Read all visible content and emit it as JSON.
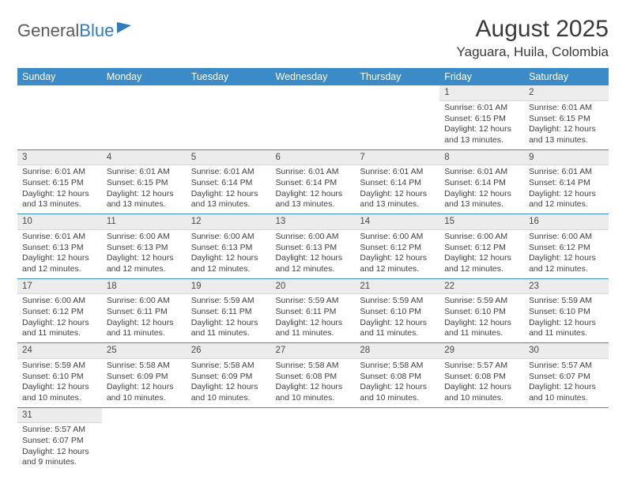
{
  "logo": {
    "part1": "General",
    "part2": "Blue"
  },
  "title": "August 2025",
  "location": "Yaguara, Huila, Colombia",
  "colors": {
    "header_bg": "#3b8bc8",
    "header_fg": "#ffffff",
    "daynum_bg": "#ececec",
    "rule": "#3b8bc8"
  },
  "font": {
    "body_size_pt": 10.5,
    "title_size_pt": 30,
    "location_size_pt": 17,
    "header_size_pt": 12.5
  },
  "day_headers": [
    "Sunday",
    "Monday",
    "Tuesday",
    "Wednesday",
    "Thursday",
    "Friday",
    "Saturday"
  ],
  "weeks": [
    [
      null,
      null,
      null,
      null,
      null,
      {
        "n": "1",
        "sunrise": "6:01 AM",
        "sunset": "6:15 PM",
        "dl_h": 12,
        "dl_m": 13
      },
      {
        "n": "2",
        "sunrise": "6:01 AM",
        "sunset": "6:15 PM",
        "dl_h": 12,
        "dl_m": 13
      }
    ],
    [
      {
        "n": "3",
        "sunrise": "6:01 AM",
        "sunset": "6:15 PM",
        "dl_h": 12,
        "dl_m": 13
      },
      {
        "n": "4",
        "sunrise": "6:01 AM",
        "sunset": "6:15 PM",
        "dl_h": 12,
        "dl_m": 13
      },
      {
        "n": "5",
        "sunrise": "6:01 AM",
        "sunset": "6:14 PM",
        "dl_h": 12,
        "dl_m": 13
      },
      {
        "n": "6",
        "sunrise": "6:01 AM",
        "sunset": "6:14 PM",
        "dl_h": 12,
        "dl_m": 13
      },
      {
        "n": "7",
        "sunrise": "6:01 AM",
        "sunset": "6:14 PM",
        "dl_h": 12,
        "dl_m": 13
      },
      {
        "n": "8",
        "sunrise": "6:01 AM",
        "sunset": "6:14 PM",
        "dl_h": 12,
        "dl_m": 13
      },
      {
        "n": "9",
        "sunrise": "6:01 AM",
        "sunset": "6:14 PM",
        "dl_h": 12,
        "dl_m": 12
      }
    ],
    [
      {
        "n": "10",
        "sunrise": "6:01 AM",
        "sunset": "6:13 PM",
        "dl_h": 12,
        "dl_m": 12
      },
      {
        "n": "11",
        "sunrise": "6:00 AM",
        "sunset": "6:13 PM",
        "dl_h": 12,
        "dl_m": 12
      },
      {
        "n": "12",
        "sunrise": "6:00 AM",
        "sunset": "6:13 PM",
        "dl_h": 12,
        "dl_m": 12
      },
      {
        "n": "13",
        "sunrise": "6:00 AM",
        "sunset": "6:13 PM",
        "dl_h": 12,
        "dl_m": 12
      },
      {
        "n": "14",
        "sunrise": "6:00 AM",
        "sunset": "6:12 PM",
        "dl_h": 12,
        "dl_m": 12
      },
      {
        "n": "15",
        "sunrise": "6:00 AM",
        "sunset": "6:12 PM",
        "dl_h": 12,
        "dl_m": 12
      },
      {
        "n": "16",
        "sunrise": "6:00 AM",
        "sunset": "6:12 PM",
        "dl_h": 12,
        "dl_m": 12
      }
    ],
    [
      {
        "n": "17",
        "sunrise": "6:00 AM",
        "sunset": "6:12 PM",
        "dl_h": 12,
        "dl_m": 11
      },
      {
        "n": "18",
        "sunrise": "6:00 AM",
        "sunset": "6:11 PM",
        "dl_h": 12,
        "dl_m": 11
      },
      {
        "n": "19",
        "sunrise": "5:59 AM",
        "sunset": "6:11 PM",
        "dl_h": 12,
        "dl_m": 11
      },
      {
        "n": "20",
        "sunrise": "5:59 AM",
        "sunset": "6:11 PM",
        "dl_h": 12,
        "dl_m": 11
      },
      {
        "n": "21",
        "sunrise": "5:59 AM",
        "sunset": "6:10 PM",
        "dl_h": 12,
        "dl_m": 11
      },
      {
        "n": "22",
        "sunrise": "5:59 AM",
        "sunset": "6:10 PM",
        "dl_h": 12,
        "dl_m": 11
      },
      {
        "n": "23",
        "sunrise": "5:59 AM",
        "sunset": "6:10 PM",
        "dl_h": 12,
        "dl_m": 11
      }
    ],
    [
      {
        "n": "24",
        "sunrise": "5:59 AM",
        "sunset": "6:10 PM",
        "dl_h": 12,
        "dl_m": 10
      },
      {
        "n": "25",
        "sunrise": "5:58 AM",
        "sunset": "6:09 PM",
        "dl_h": 12,
        "dl_m": 10
      },
      {
        "n": "26",
        "sunrise": "5:58 AM",
        "sunset": "6:09 PM",
        "dl_h": 12,
        "dl_m": 10
      },
      {
        "n": "27",
        "sunrise": "5:58 AM",
        "sunset": "6:08 PM",
        "dl_h": 12,
        "dl_m": 10
      },
      {
        "n": "28",
        "sunrise": "5:58 AM",
        "sunset": "6:08 PM",
        "dl_h": 12,
        "dl_m": 10
      },
      {
        "n": "29",
        "sunrise": "5:57 AM",
        "sunset": "6:08 PM",
        "dl_h": 12,
        "dl_m": 10
      },
      {
        "n": "30",
        "sunrise": "5:57 AM",
        "sunset": "6:07 PM",
        "dl_h": 12,
        "dl_m": 10
      }
    ],
    [
      {
        "n": "31",
        "sunrise": "5:57 AM",
        "sunset": "6:07 PM",
        "dl_h": 12,
        "dl_m": 9
      },
      null,
      null,
      null,
      null,
      null,
      null
    ]
  ],
  "labels": {
    "sunrise": "Sunrise:",
    "sunset": "Sunset:",
    "daylight": "Daylight:",
    "hours": "hours",
    "and": "and",
    "minutes": "minutes."
  }
}
